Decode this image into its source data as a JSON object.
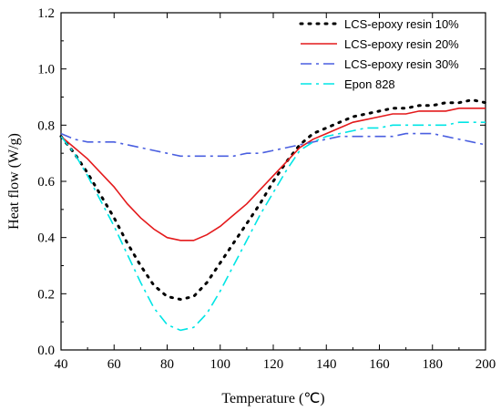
{
  "chart_data": {
    "type": "line",
    "xlabel": "Temperature (℃)",
    "ylabel": "Heat flow (W/g)",
    "xlim": [
      40,
      200
    ],
    "ylim": [
      0.0,
      1.2
    ],
    "xticks": [
      "40",
      "60",
      "80",
      "100",
      "120",
      "140",
      "160",
      "180",
      "200"
    ],
    "yticks": [
      "0.0",
      "0.2",
      "0.4",
      "0.6",
      "0.8",
      "1.0",
      "1.2"
    ],
    "grid": false,
    "legend_position": "top-right",
    "series": [
      {
        "name": "LCS-epoxy resin 10%",
        "color": "#000000",
        "style": "dotted",
        "x": [
          40,
          45,
          50,
          55,
          60,
          65,
          70,
          75,
          80,
          85,
          90,
          95,
          100,
          105,
          110,
          115,
          120,
          125,
          130,
          135,
          140,
          145,
          150,
          155,
          160,
          165,
          170,
          175,
          180,
          185,
          190,
          195,
          200
        ],
        "y": [
          0.76,
          0.7,
          0.63,
          0.55,
          0.47,
          0.38,
          0.3,
          0.23,
          0.19,
          0.18,
          0.19,
          0.24,
          0.31,
          0.38,
          0.45,
          0.52,
          0.6,
          0.67,
          0.73,
          0.77,
          0.79,
          0.81,
          0.83,
          0.84,
          0.85,
          0.86,
          0.86,
          0.87,
          0.87,
          0.88,
          0.88,
          0.89,
          0.88
        ]
      },
      {
        "name": "LCS-epoxy resin 20%",
        "color": "#e41a1c",
        "style": "solid",
        "x": [
          40,
          45,
          50,
          55,
          60,
          65,
          70,
          75,
          80,
          85,
          90,
          95,
          100,
          105,
          110,
          115,
          120,
          125,
          130,
          135,
          140,
          145,
          150,
          155,
          160,
          165,
          170,
          175,
          180,
          185,
          190,
          195,
          200
        ],
        "y": [
          0.76,
          0.72,
          0.68,
          0.63,
          0.58,
          0.52,
          0.47,
          0.43,
          0.4,
          0.39,
          0.39,
          0.41,
          0.44,
          0.48,
          0.52,
          0.57,
          0.62,
          0.67,
          0.72,
          0.75,
          0.77,
          0.79,
          0.81,
          0.82,
          0.83,
          0.84,
          0.84,
          0.85,
          0.85,
          0.85,
          0.86,
          0.86,
          0.86
        ]
      },
      {
        "name": "LCS-epoxy resin 30%",
        "color": "#4a5fe0",
        "style": "dashdot",
        "x": [
          40,
          45,
          50,
          55,
          60,
          65,
          70,
          75,
          80,
          85,
          90,
          95,
          100,
          105,
          110,
          115,
          120,
          125,
          130,
          135,
          140,
          145,
          150,
          155,
          160,
          165,
          170,
          175,
          180,
          185,
          190,
          195,
          200
        ],
        "y": [
          0.77,
          0.75,
          0.74,
          0.74,
          0.74,
          0.73,
          0.72,
          0.71,
          0.7,
          0.69,
          0.69,
          0.69,
          0.69,
          0.69,
          0.7,
          0.7,
          0.71,
          0.72,
          0.73,
          0.74,
          0.75,
          0.76,
          0.76,
          0.76,
          0.76,
          0.76,
          0.77,
          0.77,
          0.77,
          0.76,
          0.75,
          0.74,
          0.73
        ]
      },
      {
        "name": "Epon 828",
        "color": "#00e5e5",
        "style": "dashdot",
        "x": [
          40,
          45,
          50,
          55,
          60,
          65,
          70,
          75,
          80,
          85,
          90,
          95,
          100,
          105,
          110,
          115,
          120,
          125,
          130,
          135,
          140,
          145,
          150,
          155,
          160,
          165,
          170,
          175,
          180,
          185,
          190,
          195,
          200
        ],
        "y": [
          0.76,
          0.7,
          0.62,
          0.53,
          0.44,
          0.34,
          0.24,
          0.15,
          0.09,
          0.07,
          0.08,
          0.13,
          0.21,
          0.3,
          0.39,
          0.48,
          0.56,
          0.64,
          0.71,
          0.74,
          0.76,
          0.77,
          0.78,
          0.79,
          0.79,
          0.8,
          0.8,
          0.8,
          0.8,
          0.8,
          0.81,
          0.81,
          0.81
        ]
      }
    ]
  }
}
